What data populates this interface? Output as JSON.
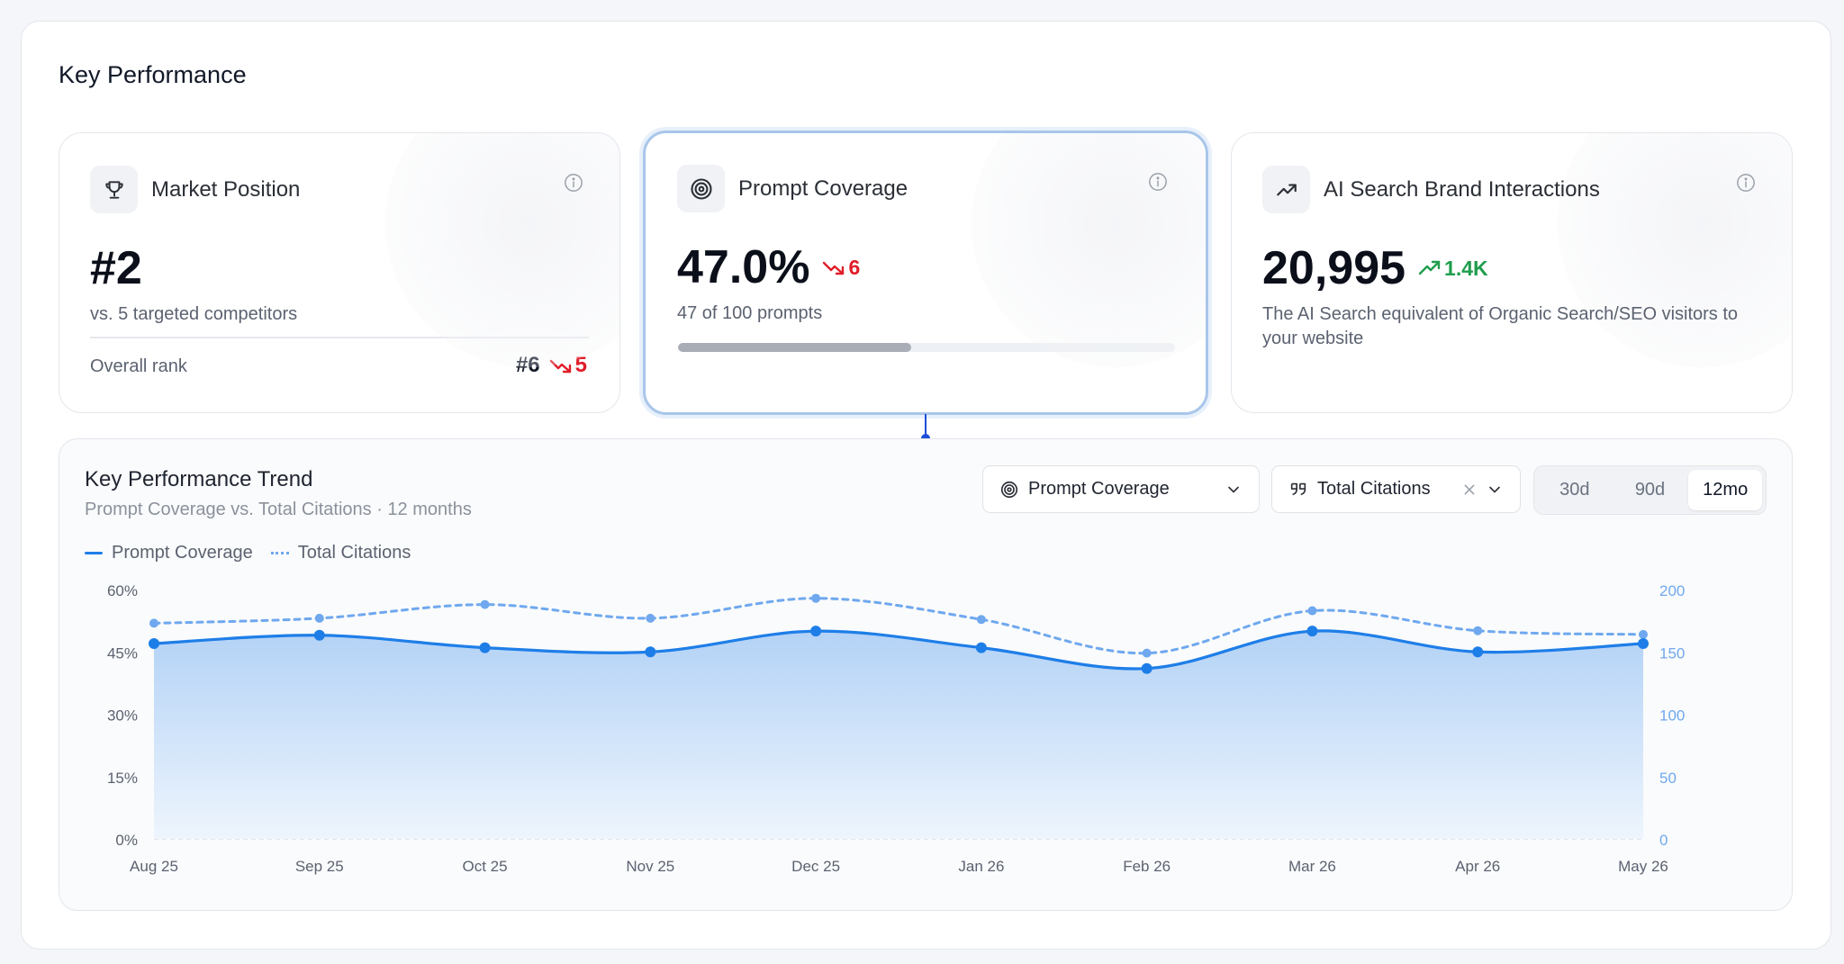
{
  "section": {
    "title": "Key Performance"
  },
  "cards": {
    "market": {
      "title": "Market Position",
      "icon": "trophy-icon",
      "value": "#2",
      "subtitle": "vs. 5 targeted competitors",
      "rank_label": "Overall rank",
      "rank_value": "#6",
      "rank_delta": "5",
      "rank_delta_direction": "down"
    },
    "coverage": {
      "title": "Prompt Coverage",
      "icon": "target-icon",
      "value": "47.0%",
      "delta": "6",
      "delta_direction": "down",
      "subtitle": "47 of 100 prompts",
      "progress": 0.47
    },
    "interactions": {
      "title": "AI Search Brand Interactions",
      "icon": "trending-up-icon",
      "value": "20,995",
      "delta": "1.4K",
      "delta_direction": "up",
      "subtitle": "The AI Search equivalent of Organic Search/SEO visitors to your website"
    }
  },
  "trend": {
    "title": "Key Performance Trend",
    "subtitle": "Prompt Coverage vs. Total Citations · 12 months",
    "legend": {
      "primary": "Prompt Coverage",
      "secondary": "Total Citations"
    },
    "primary_select": {
      "label": "Prompt Coverage",
      "icon": "target-icon"
    },
    "secondary_select": {
      "label": "Total Citations",
      "icon": "quote-icon"
    },
    "ranges": [
      "30d",
      "90d",
      "12mo"
    ],
    "selected_range": "12mo"
  },
  "colors": {
    "primary_line": "#1e7ee8",
    "secondary_line": "#6fa8ef",
    "down": "#e11d28",
    "up": "#1f9d4c",
    "active_border": "#a9c6ea"
  },
  "chart_data": {
    "type": "area",
    "categories": [
      "Aug 25",
      "Sep 25",
      "Oct 25",
      "Nov 25",
      "Dec 25",
      "Jan 26",
      "Feb 26",
      "Mar 26",
      "Apr 26",
      "May 26"
    ],
    "series": [
      {
        "name": "Prompt Coverage",
        "axis": "left",
        "style": "solid-area",
        "values": [
          47,
          49,
          46,
          45,
          50,
          46,
          41,
          50,
          45,
          47
        ]
      },
      {
        "name": "Total Citations",
        "axis": "right",
        "style": "dotted",
        "values": [
          173,
          177,
          188,
          177,
          193,
          176,
          149,
          183,
          167,
          164
        ]
      }
    ],
    "y_left": {
      "ticks": [
        "60%",
        "45%",
        "30%",
        "15%",
        "0%"
      ],
      "range": [
        0,
        60
      ]
    },
    "y_right": {
      "ticks": [
        "200",
        "150",
        "100",
        "50",
        "0"
      ],
      "range": [
        0,
        200
      ]
    },
    "grid": "baseline only",
    "legend_position": "top-left"
  }
}
